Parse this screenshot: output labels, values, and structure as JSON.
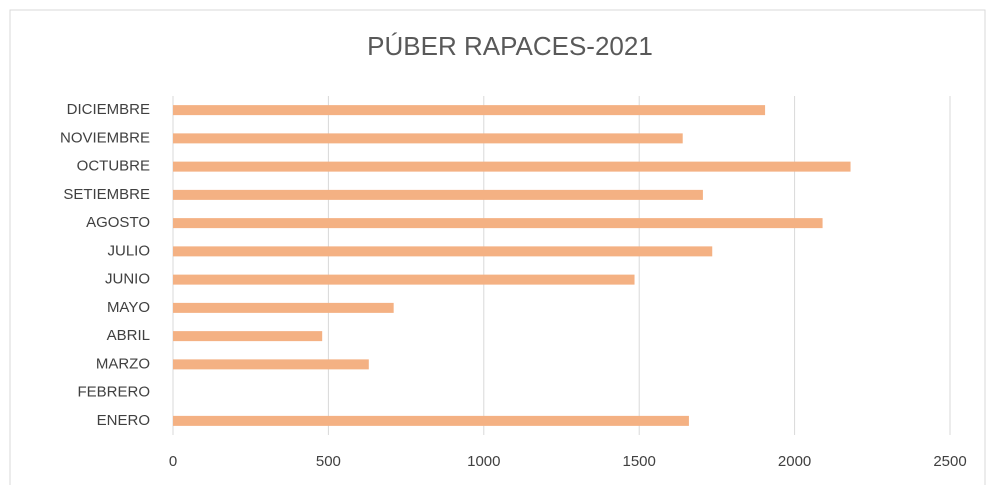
{
  "chart_data": {
    "type": "barh",
    "title": "PÚBER RAPACES-2021",
    "categories": [
      "ENERO",
      "FEBRERO",
      "MARZO",
      "ABRIL",
      "MAYO",
      "JUNIO",
      "JULIO",
      "AGOSTO",
      "SETIEMBRE",
      "OCTUBRE",
      "NOVIEMBRE",
      "DICIEMBRE"
    ],
    "values": [
      1660,
      0,
      630,
      480,
      710,
      1485,
      1735,
      2090,
      1705,
      2180,
      1640,
      1905
    ],
    "color": "#f4b183",
    "xlim": [
      0,
      2500
    ],
    "xticks": [
      0,
      500,
      1000,
      1500,
      2000,
      2500
    ],
    "grid": true
  }
}
